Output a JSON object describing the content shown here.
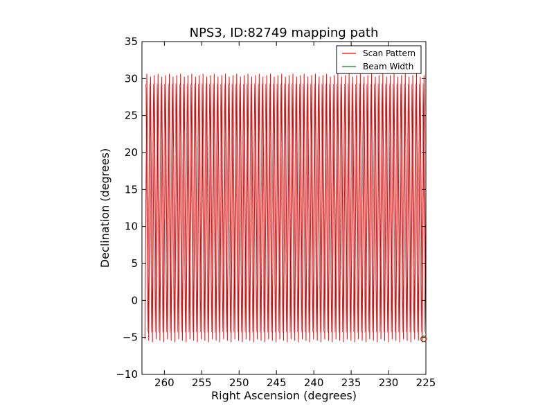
{
  "chart_data": {
    "type": "line",
    "title": "NPS3, ID:82749 mapping path",
    "xlabel": "Right Ascension (degrees)",
    "ylabel": "Declination (degrees)",
    "xlim": [
      263,
      225
    ],
    "ylim": [
      -10,
      35
    ],
    "x_ticks": [
      "260",
      "255",
      "250",
      "245",
      "240",
      "235",
      "230",
      "225"
    ],
    "x_tick_values": [
      260,
      255,
      250,
      245,
      240,
      235,
      230,
      225
    ],
    "y_ticks": [
      "−10",
      "−5",
      "0",
      "5",
      "10",
      "15",
      "20",
      "25",
      "30",
      "35"
    ],
    "y_tick_values": [
      -10,
      -5,
      0,
      5,
      10,
      15,
      20,
      25,
      30,
      35
    ],
    "grid": false,
    "legend_position": "top-right",
    "series": [
      {
        "name": "Scan Pattern",
        "color": "#ff0000",
        "pattern": "zigzag",
        "x_start": 262.6,
        "x_end": 225.0,
        "dec_min": -5.5,
        "dec_max": 30.5,
        "num_legs": 150
      },
      {
        "name": "Beam Width",
        "color": "#008000"
      }
    ],
    "end_marker": {
      "x": 225.3,
      "y": -5.2,
      "color": "#8b4513"
    }
  }
}
